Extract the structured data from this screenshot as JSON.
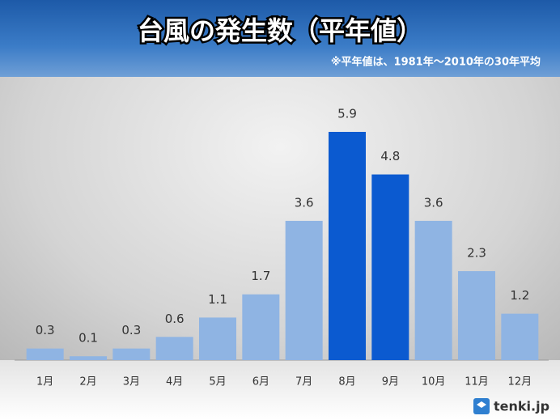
{
  "chart_data": {
    "type": "bar",
    "title": "台風の発生数（平年値）",
    "subtitle": "※平年値は、1981年～2010年の30年平均",
    "categories": [
      "1月",
      "2月",
      "3月",
      "4月",
      "5月",
      "6月",
      "7月",
      "8月",
      "9月",
      "10月",
      "11月",
      "12月"
    ],
    "values": [
      0.3,
      0.1,
      0.3,
      0.6,
      1.1,
      1.7,
      3.6,
      5.9,
      4.8,
      3.6,
      2.3,
      1.2
    ],
    "colors": [
      "#8fb4e3",
      "#8fb4e3",
      "#8fb4e3",
      "#8fb4e3",
      "#8fb4e3",
      "#8fb4e3",
      "#8fb4e3",
      "#0b5ad0",
      "#0b5ad0",
      "#8fb4e3",
      "#8fb4e3",
      "#8fb4e3"
    ],
    "logo": "tenki.jp"
  }
}
